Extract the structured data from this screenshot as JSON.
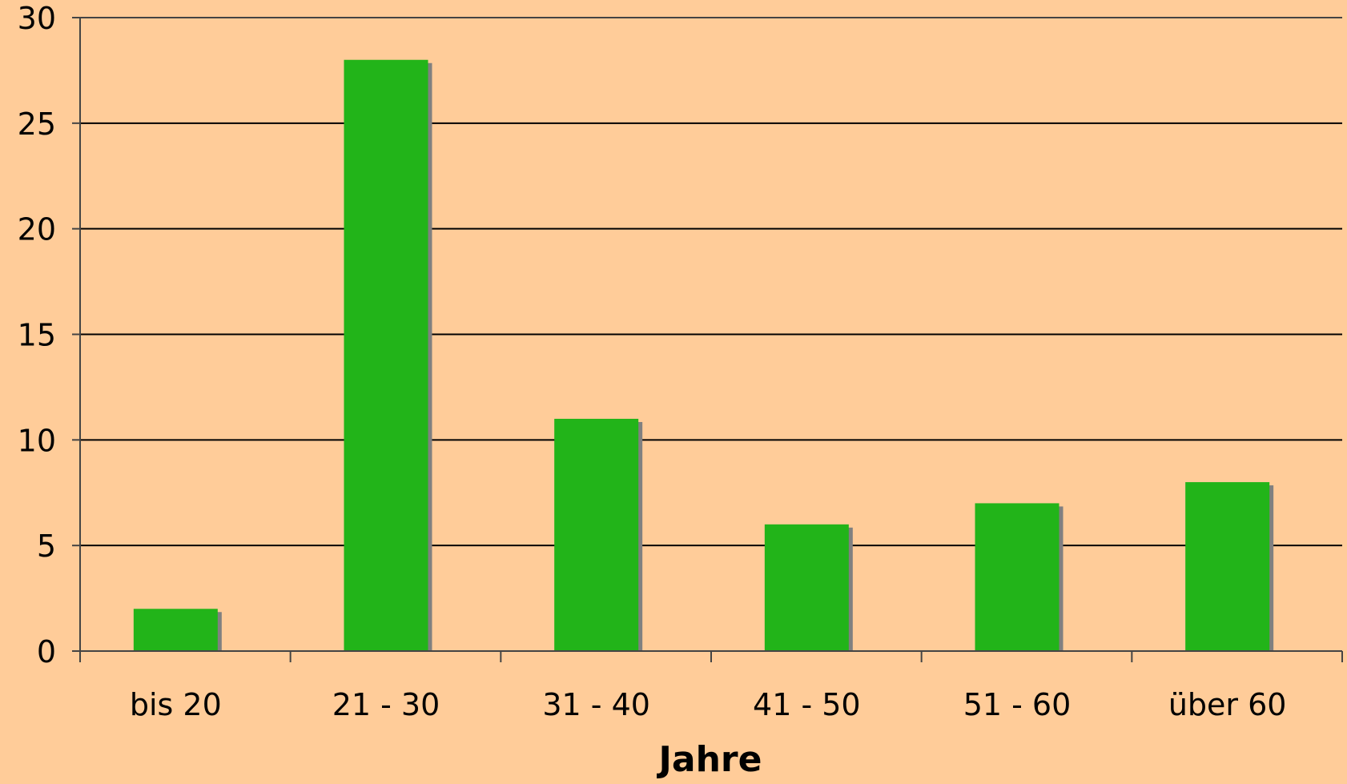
{
  "chart_data": {
    "type": "bar",
    "categories": [
      "bis 20",
      "21 - 30",
      "31 - 40",
      "41 - 50",
      "51 - 60",
      "über 60"
    ],
    "values": [
      2,
      28,
      11,
      6,
      7,
      8
    ],
    "title": "",
    "xlabel": "Jahre",
    "ylabel": "",
    "ylim": [
      0,
      30
    ],
    "yticks": [
      "0",
      "5",
      "10",
      "15",
      "20",
      "25",
      "30"
    ],
    "grid": true,
    "legend": "none",
    "colors": {
      "background": "#FFCC99",
      "bar": "#22B419",
      "bar_shadow": "#808080",
      "grid": "#000000",
      "text": "#000000"
    }
  }
}
